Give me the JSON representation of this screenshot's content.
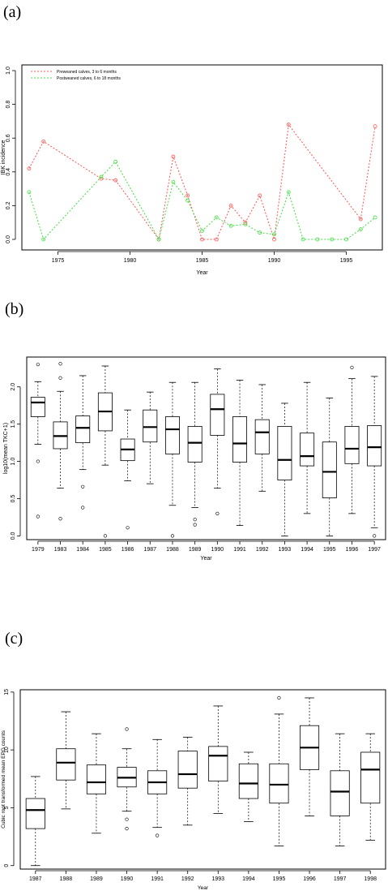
{
  "panels": [
    {
      "label": "(a)",
      "chart_data": {
        "type": "line",
        "title": "",
        "xlabel": "Year",
        "ylabel": "IBK incidence",
        "xlim": [
          1972.5,
          1997.5
        ],
        "ylim": [
          0.0,
          1.0
        ],
        "xticks": [
          1975,
          1980,
          1985,
          1990,
          1995
        ],
        "yticks": [
          0.0,
          0.2,
          0.4,
          0.6,
          0.8,
          1.0
        ],
        "legend_position": "top-left",
        "series": [
          {
            "name": "Preweaned calves, 3 to 6 months",
            "color": "#ff5555",
            "x": [
              1973,
              1974,
              1978,
              1979,
              1982,
              1983,
              1984,
              1985,
              1986,
              1987,
              1988,
              1989,
              1990,
              1991,
              1996,
              1997
            ],
            "y": [
              0.42,
              0.58,
              0.36,
              0.35,
              0.0,
              0.49,
              0.26,
              0.0,
              0.0,
              0.2,
              0.1,
              0.26,
              0.0,
              0.68,
              0.12,
              0.67
            ]
          },
          {
            "name": "Postweaned calves, 6 to 18 months",
            "color": "#44dd44",
            "x": [
              1973,
              1974,
              1978,
              1979,
              1982,
              1983,
              1984,
              1985,
              1986,
              1987,
              1988,
              1989,
              1990,
              1991,
              1992,
              1993,
              1994,
              1995,
              1996,
              1997
            ],
            "y": [
              0.28,
              0.0,
              0.37,
              0.46,
              0.0,
              0.34,
              0.23,
              0.05,
              0.13,
              0.08,
              0.09,
              0.04,
              0.03,
              0.28,
              0.0,
              0.0,
              0.0,
              0.0,
              0.06,
              0.13
            ]
          }
        ]
      }
    },
    {
      "label": "(b)",
      "chart_data": {
        "type": "box",
        "title": "",
        "xlabel": "Year",
        "ylabel": "log10(mean TKC+1)",
        "ylim": [
          -0.05,
          2.4
        ],
        "yticks": [
          0.0,
          0.5,
          1.0,
          1.5,
          2.0
        ],
        "ytick_labels": [
          "0.0",
          "0.5",
          "1.0",
          "1.5",
          "2.0"
        ],
        "categories": [
          "1979",
          "1983",
          "1984",
          "1985",
          "1986",
          "1987",
          "1988",
          "1989",
          "1990",
          "1991",
          "1992",
          "1993",
          "1994",
          "1995",
          "1996",
          "1997"
        ],
        "boxes": [
          {
            "lw": 1.23,
            "q1": 1.6,
            "med": 1.79,
            "q3": 1.86,
            "uw": 2.07,
            "out": [
              2.3,
              1.0,
              0.26
            ]
          },
          {
            "lw": 0.64,
            "q1": 1.17,
            "med": 1.34,
            "q3": 1.53,
            "uw": 1.94,
            "out": [
              2.31,
              2.12,
              0.23
            ]
          },
          {
            "lw": 0.89,
            "q1": 1.25,
            "med": 1.45,
            "q3": 1.61,
            "uw": 2.15,
            "out": [
              0.66,
              0.38
            ]
          },
          {
            "lw": 0.95,
            "q1": 1.41,
            "med": 1.67,
            "q3": 1.92,
            "uw": 2.28,
            "out": [
              0.0
            ]
          },
          {
            "lw": 0.74,
            "q1": 1.01,
            "med": 1.16,
            "q3": 1.3,
            "uw": 1.69,
            "out": [
              0.11
            ]
          },
          {
            "lw": 0.7,
            "q1": 1.26,
            "med": 1.46,
            "q3": 1.69,
            "uw": 1.93,
            "out": []
          },
          {
            "lw": 0.41,
            "q1": 1.1,
            "med": 1.43,
            "q3": 1.6,
            "uw": 2.06,
            "out": [
              0.0
            ]
          },
          {
            "lw": 0.38,
            "q1": 0.99,
            "med": 1.25,
            "q3": 1.47,
            "uw": 2.06,
            "out": [
              0.22,
              0.15
            ]
          },
          {
            "lw": 0.64,
            "q1": 1.35,
            "med": 1.7,
            "q3": 1.9,
            "uw": 2.24,
            "out": [
              0.3
            ]
          },
          {
            "lw": 0.14,
            "q1": 0.99,
            "med": 1.24,
            "q3": 1.6,
            "uw": 2.09,
            "out": []
          },
          {
            "lw": 0.6,
            "q1": 1.1,
            "med": 1.39,
            "q3": 1.56,
            "uw": 2.03,
            "out": []
          },
          {
            "lw": 0.0,
            "q1": 0.75,
            "med": 1.02,
            "q3": 1.47,
            "uw": 1.78,
            "out": []
          },
          {
            "lw": 0.3,
            "q1": 0.94,
            "med": 1.07,
            "q3": 1.38,
            "uw": 2.06,
            "out": []
          },
          {
            "lw": 0.0,
            "q1": 0.51,
            "med": 0.86,
            "q3": 1.26,
            "uw": 1.85,
            "out": []
          },
          {
            "lw": 0.3,
            "q1": 0.97,
            "med": 1.17,
            "q3": 1.47,
            "uw": 2.11,
            "out": [
              2.26
            ]
          },
          {
            "lw": 0.11,
            "q1": 0.94,
            "med": 1.19,
            "q3": 1.48,
            "uw": 2.14,
            "out": [
              0.0
            ]
          }
        ]
      }
    },
    {
      "label": "(c)",
      "chart_data": {
        "type": "box",
        "title": "",
        "xlabel": "Year",
        "ylabel": "Cubic root transformed mean EPG counts",
        "ylim": [
          -0.3,
          15.2
        ],
        "yticks": [
          0,
          5,
          10,
          15
        ],
        "ytick_labels": [
          "0",
          "5",
          "10",
          "15"
        ],
        "categories": [
          "1987",
          "1988",
          "1989",
          "1990",
          "1991",
          "1992",
          "1993",
          "1994",
          "1995",
          "1996",
          "1997",
          "1998"
        ],
        "boxes": [
          {
            "lw": 0.0,
            "q1": 3.2,
            "med": 4.8,
            "q3": 5.8,
            "uw": 7.7,
            "out": []
          },
          {
            "lw": 4.9,
            "q1": 7.4,
            "med": 8.9,
            "q3": 10.1,
            "uw": 13.3,
            "out": []
          },
          {
            "lw": 2.8,
            "q1": 6.2,
            "med": 7.2,
            "q3": 8.7,
            "uw": 11.4,
            "out": []
          },
          {
            "lw": 4.7,
            "q1": 6.8,
            "med": 7.6,
            "q3": 8.5,
            "uw": 10.1,
            "out": [
              11.8,
              4.0,
              3.2
            ]
          },
          {
            "lw": 3.3,
            "q1": 6.2,
            "med": 7.2,
            "q3": 8.2,
            "uw": 10.9,
            "out": [
              2.6
            ]
          },
          {
            "lw": 3.5,
            "q1": 6.7,
            "med": 7.9,
            "q3": 9.9,
            "uw": 11.1,
            "out": []
          },
          {
            "lw": 4.5,
            "q1": 7.3,
            "med": 9.5,
            "q3": 10.3,
            "uw": 13.8,
            "out": []
          },
          {
            "lw": 3.8,
            "q1": 5.8,
            "med": 7.1,
            "q3": 8.8,
            "uw": 9.8,
            "out": []
          },
          {
            "lw": 1.7,
            "q1": 5.4,
            "med": 7.0,
            "q3": 8.8,
            "uw": 13.1,
            "out": [
              14.5
            ]
          },
          {
            "lw": 4.3,
            "q1": 8.3,
            "med": 10.2,
            "q3": 12.1,
            "uw": 14.5,
            "out": []
          },
          {
            "lw": 1.7,
            "q1": 4.3,
            "med": 6.4,
            "q3": 8.2,
            "uw": 11.4,
            "out": []
          },
          {
            "lw": 2.2,
            "q1": 5.4,
            "med": 8.3,
            "q3": 9.8,
            "uw": 11.4,
            "out": []
          }
        ]
      }
    }
  ]
}
